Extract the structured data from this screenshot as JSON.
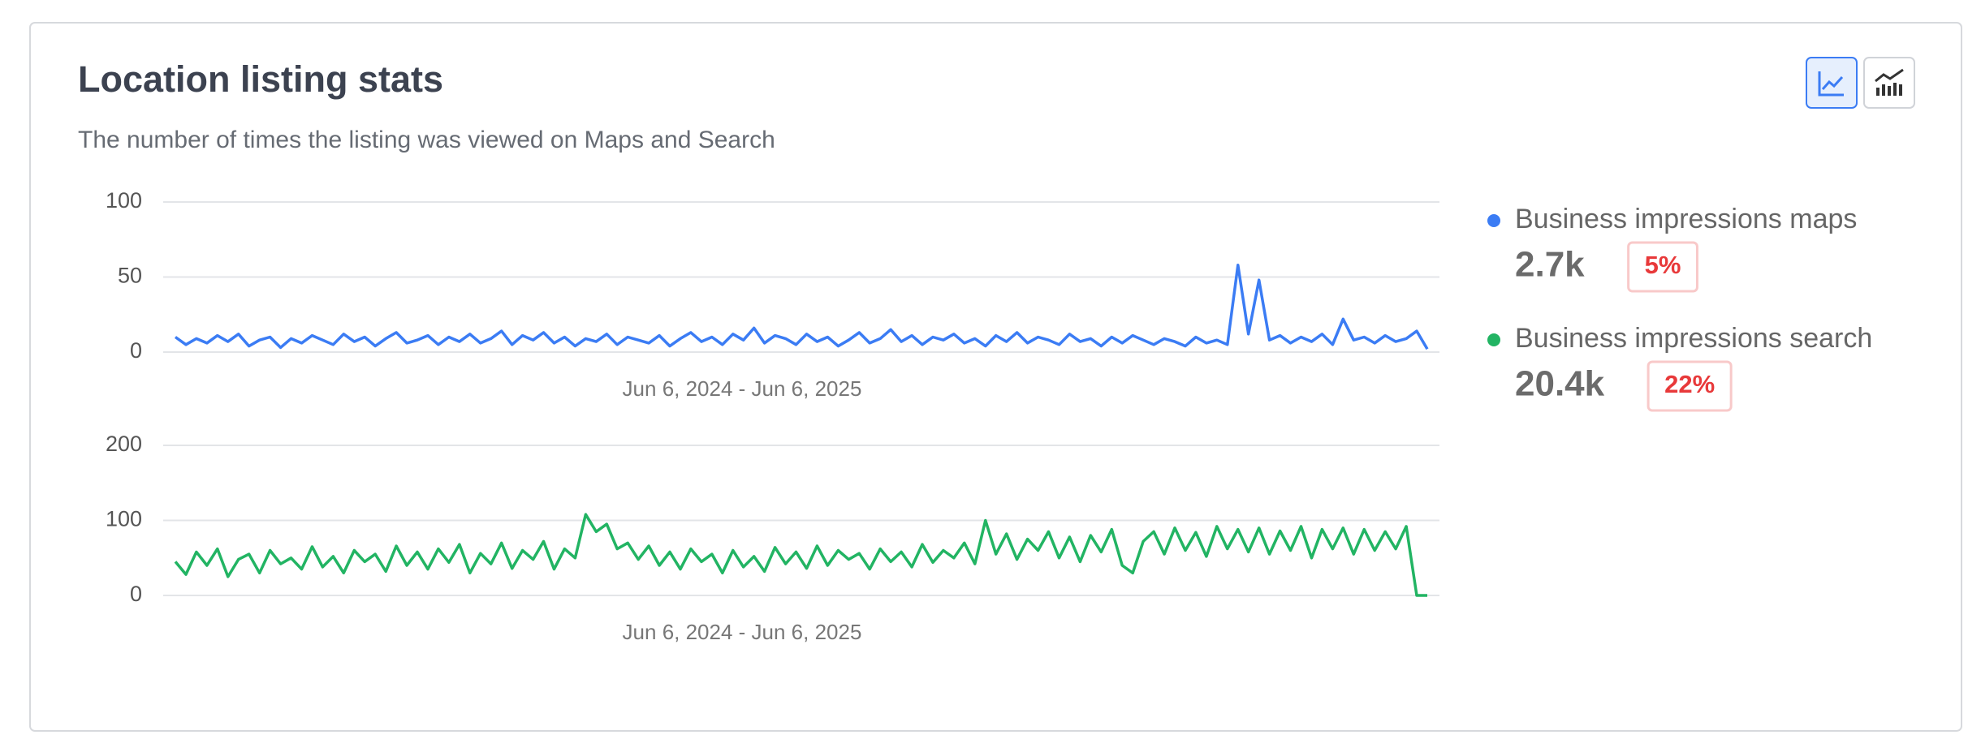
{
  "title": "Location listing stats",
  "subtitle": "The number of times the listing was viewed on Maps and Search",
  "summary": [
    {
      "total": "2.7k",
      "change": "5%"
    },
    {
      "total": "20.4k",
      "change": "22%"
    }
  ],
  "chart_data": [
    {
      "type": "line",
      "x_label": "Jun 6, 2024 - Jun 6, 2025",
      "ylim": [
        0,
        100
      ],
      "yticks": [
        0,
        50,
        100
      ],
      "grid": true,
      "series": [
        {
          "name": "Business impressions maps",
          "color": "#3b7cf4",
          "values": [
            10,
            5,
            9,
            6,
            11,
            7,
            12,
            4,
            8,
            10,
            3,
            9,
            6,
            11,
            8,
            5,
            12,
            7,
            10,
            4,
            9,
            13,
            6,
            8,
            11,
            5,
            10,
            7,
            12,
            6,
            9,
            14,
            5,
            11,
            8,
            13,
            6,
            10,
            4,
            9,
            7,
            12,
            5,
            10,
            8,
            6,
            11,
            4,
            9,
            13,
            7,
            10,
            5,
            12,
            8,
            16,
            6,
            11,
            9,
            5,
            12,
            7,
            10,
            4,
            8,
            13,
            6,
            9,
            15,
            7,
            11,
            5,
            10,
            8,
            12,
            6,
            9,
            4,
            11,
            7,
            13,
            6,
            10,
            8,
            5,
            12,
            7,
            9,
            4,
            10,
            6,
            11,
            8,
            5,
            9,
            7,
            4,
            10,
            6,
            8,
            5,
            58,
            12,
            48,
            8,
            11,
            6,
            10,
            7,
            12,
            5,
            22,
            8,
            10,
            6,
            11,
            7,
            9,
            14,
            2
          ]
        }
      ]
    },
    {
      "type": "line",
      "x_label": "Jun 6, 2024 - Jun 6, 2025",
      "ylim": [
        0,
        200
      ],
      "yticks": [
        0,
        100,
        200
      ],
      "grid": true,
      "series": [
        {
          "name": "Business impressions search",
          "color": "#22b463",
          "values": [
            45,
            28,
            58,
            40,
            62,
            25,
            48,
            55,
            30,
            60,
            42,
            50,
            35,
            65,
            38,
            52,
            30,
            60,
            45,
            55,
            32,
            66,
            40,
            58,
            35,
            62,
            44,
            68,
            30,
            56,
            42,
            70,
            36,
            60,
            48,
            72,
            35,
            62,
            50,
            108,
            85,
            95,
            62,
            70,
            48,
            66,
            40,
            58,
            35,
            62,
            45,
            55,
            30,
            60,
            38,
            52,
            32,
            64,
            42,
            58,
            36,
            66,
            40,
            60,
            48,
            56,
            35,
            62,
            45,
            58,
            38,
            68,
            44,
            60,
            50,
            70,
            42,
            100,
            55,
            82,
            48,
            75,
            60,
            85,
            50,
            78,
            45,
            80,
            58,
            88,
            40,
            30,
            72,
            85,
            55,
            90,
            60,
            84,
            52,
            92,
            62,
            88,
            58,
            90,
            55,
            86,
            60,
            92,
            50,
            88,
            62,
            90,
            55,
            88,
            60,
            85,
            62,
            92,
            0,
            0
          ]
        }
      ]
    }
  ]
}
